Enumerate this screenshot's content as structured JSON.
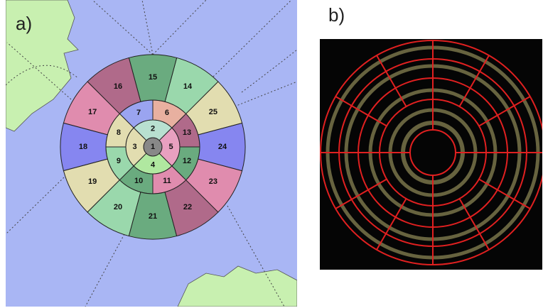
{
  "panels": {
    "a": {
      "label": "a)"
    },
    "b": {
      "label": "b)"
    }
  },
  "segments": [
    "1",
    "2",
    "3",
    "4",
    "5",
    "6",
    "7",
    "8",
    "9",
    "10",
    "11",
    "12",
    "13",
    "14",
    "15",
    "16",
    "17",
    "18",
    "19",
    "20",
    "21",
    "22",
    "23",
    "24",
    "25"
  ]
}
